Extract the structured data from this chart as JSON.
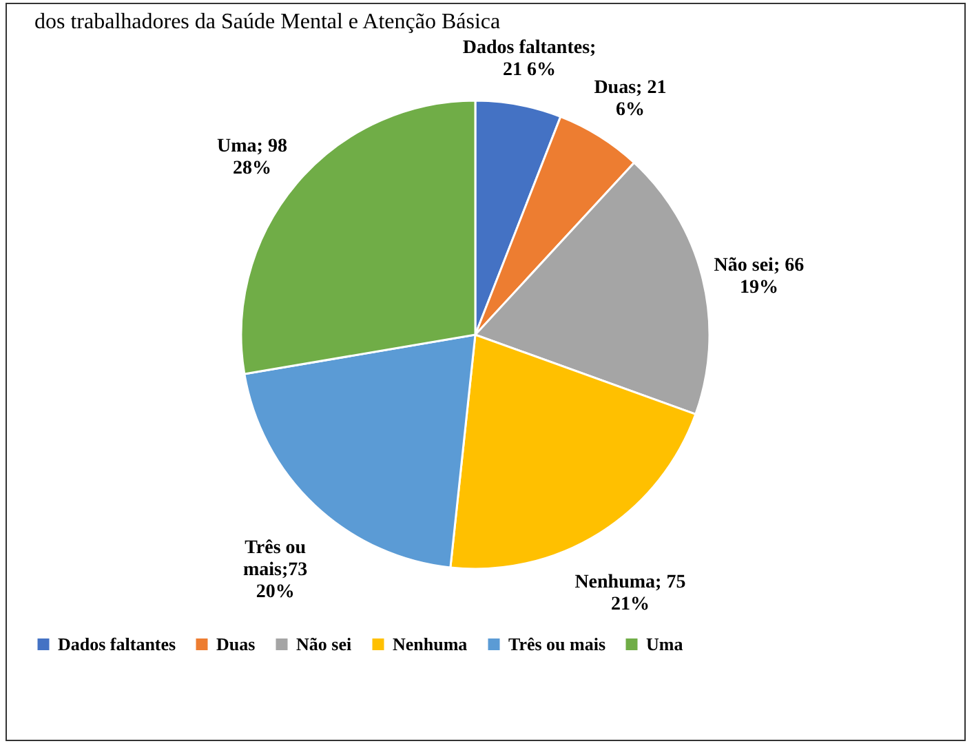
{
  "chart_data": {
    "type": "pie",
    "title": "dos trabalhadores da Saúde Mental e Atenção Básica",
    "categories": [
      "Dados faltantes",
      "Duas",
      "Não sei",
      "Nenhuma",
      "Três ou mais",
      "Uma"
    ],
    "values": [
      21,
      21,
      66,
      75,
      73,
      98
    ],
    "colors": [
      "#4472c4",
      "#ed7d31",
      "#a5a5a5",
      "#ffc000",
      "#5b9bd5",
      "#70ad47"
    ],
    "value_labels": [
      "Dados faltantes;\n21 6%",
      "Duas; 21\n6%",
      "Não sei; 66\n19%",
      "Nenhuma; 75\n21%",
      "Três ou\nmais;73\n20%",
      "Uma; 98\n28%"
    ],
    "legend": "bottom"
  }
}
